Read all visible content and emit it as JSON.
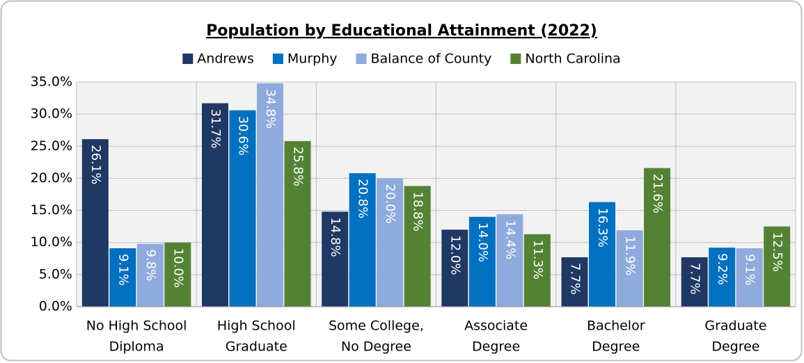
{
  "chart_data": {
    "type": "bar",
    "title": "Population by Educational Attainment (2022)",
    "categories": [
      [
        "No High School",
        "Diploma"
      ],
      [
        "High School",
        "Graduate"
      ],
      [
        "Some College,",
        "No Degree"
      ],
      [
        "Associate",
        "Degree"
      ],
      [
        "Bachelor",
        "Degree"
      ],
      [
        "Graduate",
        "Degree"
      ]
    ],
    "series": [
      {
        "name": "Andrews",
        "color": "#203864",
        "values": [
          26.1,
          31.7,
          14.8,
          12.0,
          7.7,
          7.7
        ],
        "value_labels": [
          "26.1%",
          "31.7%",
          "14.8%",
          "12.0%",
          "7.7%",
          "7.7%"
        ]
      },
      {
        "name": "Murphy",
        "color": "#0070c0",
        "values": [
          9.1,
          30.6,
          20.8,
          14.0,
          16.3,
          9.2
        ],
        "value_labels": [
          "9.1%",
          "30.6%",
          "20.8%",
          "14.0%",
          "16.3%",
          "9.2%"
        ]
      },
      {
        "name": "Balance of County",
        "color": "#8faadc",
        "values": [
          9.8,
          34.8,
          20.0,
          14.4,
          11.9,
          9.1
        ],
        "value_labels": [
          "9.8%",
          "34.8%",
          "20.0%",
          "14.4%",
          "11.9%",
          "9.1%"
        ]
      },
      {
        "name": "North Carolina",
        "color": "#548235",
        "values": [
          10.0,
          25.8,
          18.8,
          11.3,
          21.6,
          12.5
        ],
        "value_labels": [
          "10.0%",
          "25.8%",
          "18.8%",
          "11.3%",
          "21.6%",
          "12.5%"
        ]
      }
    ],
    "ylim": [
      0,
      35
    ],
    "yticks": [
      {
        "value": 0,
        "label": "0.0%"
      },
      {
        "value": 5,
        "label": "5.0%"
      },
      {
        "value": 10,
        "label": "10.0%"
      },
      {
        "value": 15,
        "label": "15.0%"
      },
      {
        "value": 20,
        "label": "20.0%"
      },
      {
        "value": 25,
        "label": "25.0%"
      },
      {
        "value": 30,
        "label": "30.0%"
      },
      {
        "value": 35,
        "label": "35.0%"
      }
    ],
    "grid": true,
    "legend": "top"
  }
}
